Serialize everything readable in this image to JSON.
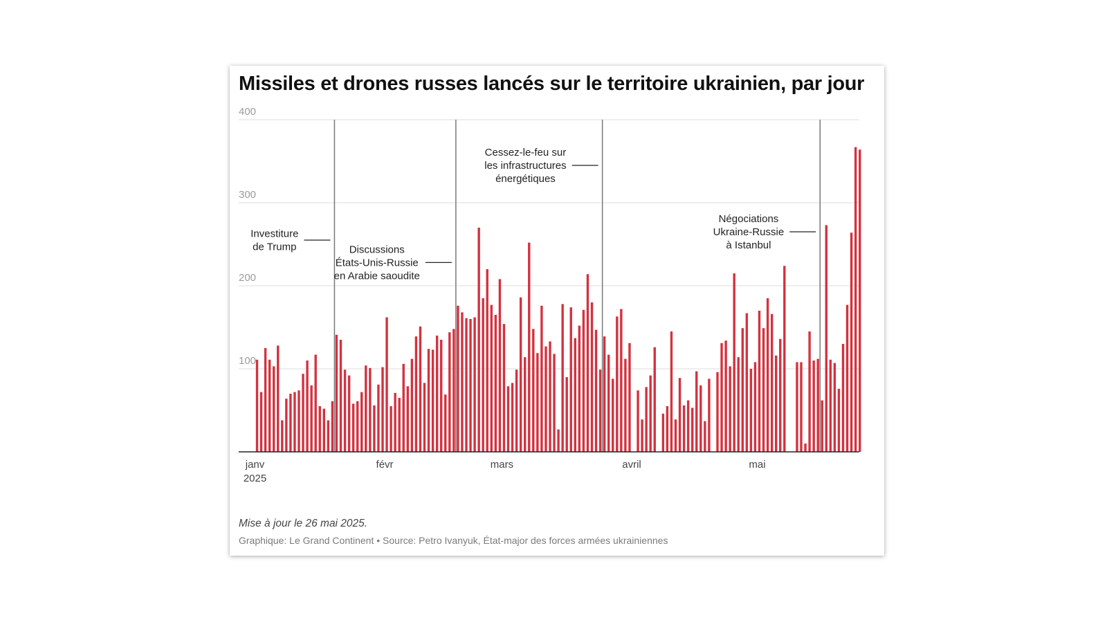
{
  "chart_data": {
    "type": "bar",
    "title": "Missiles et drones russes lancés sur le territoire ukrainien, par jour",
    "xlabel": "",
    "ylabel": "",
    "ylim": [
      0,
      400
    ],
    "yticks": [
      "400",
      "300",
      "200",
      "100"
    ],
    "ytick_values": [
      400,
      300,
      200,
      100
    ],
    "grid": true,
    "x_start": "2025-01-01",
    "x_end": "2025-05-26",
    "xticks": [
      {
        "date": "2025-01-01",
        "label": "janv",
        "sublabel": "2025"
      },
      {
        "date": "2025-02-01",
        "label": "févr",
        "sublabel": ""
      },
      {
        "date": "2025-03-01",
        "label": "mars",
        "sublabel": ""
      },
      {
        "date": "2025-04-01",
        "label": "avril",
        "sublabel": ""
      },
      {
        "date": "2025-05-01",
        "label": "mai",
        "sublabel": ""
      }
    ],
    "bar_color": "#d3323f",
    "series": [
      {
        "values": [
          111,
          72,
          125,
          111,
          103,
          128,
          38,
          64,
          70,
          72,
          74,
          94,
          110,
          80,
          117,
          55,
          52,
          38,
          61,
          141,
          135,
          99,
          92,
          58,
          61,
          72,
          104,
          101,
          56,
          81,
          102,
          162,
          55,
          71,
          65,
          106,
          79,
          112,
          139,
          151,
          83,
          124,
          123,
          140,
          135,
          69,
          144,
          148,
          176,
          168,
          161,
          160,
          162,
          270,
          185,
          220,
          177,
          165,
          208,
          154,
          79,
          83,
          99,
          186,
          114,
          252,
          148,
          119,
          176,
          127,
          133,
          118,
          27,
          178,
          90,
          174,
          137,
          152,
          171,
          214,
          180,
          147,
          99,
          139,
          117,
          88,
          163,
          172,
          112,
          131,
          0,
          74,
          39,
          78,
          92,
          126,
          0,
          46,
          55,
          145,
          39,
          89,
          56,
          62,
          53,
          97,
          80,
          37,
          88,
          0,
          96,
          131,
          134,
          103,
          215,
          114,
          149,
          167,
          100,
          108,
          170,
          149,
          185,
          166,
          116,
          136,
          224,
          0,
          0,
          108,
          108,
          10,
          145,
          110,
          112,
          62,
          273,
          111,
          107,
          76,
          130,
          177,
          264,
          367,
          364
        ]
      }
    ],
    "events": [
      {
        "date": "2025-01-20",
        "lines": [
          "Investiture",
          "de Trump"
        ],
        "side": "left",
        "label_y": 255
      },
      {
        "date": "2025-02-18",
        "lines": [
          "Discussions",
          "États-Unis-Russie",
          "en Arabie saoudite"
        ],
        "side": "left",
        "label_y": 228
      },
      {
        "date": "2025-03-25",
        "lines": [
          "Cessez-le-feu sur",
          "les infrastructures",
          "énergétiques"
        ],
        "side": "left",
        "label_y": 345
      },
      {
        "date": "2025-05-16",
        "lines": [
          "Négociations",
          "Ukraine-Russie",
          "à Istanbul"
        ],
        "side": "left",
        "label_y": 265
      }
    ]
  },
  "footer": {
    "note": "Mise à jour le 26 mai 2025.",
    "credit": "Graphique: Le Grand Continent • Source: Petro Ivanyuk, État-major des forces armées ukrainiennes"
  }
}
